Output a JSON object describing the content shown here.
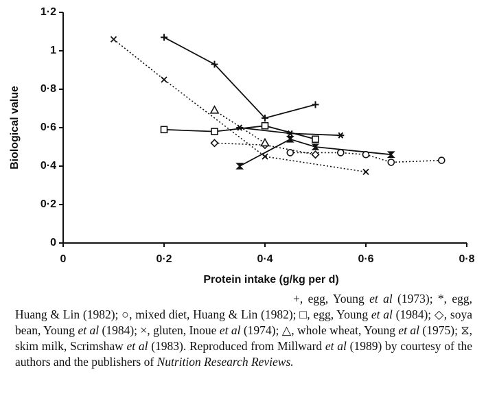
{
  "chart_data": {
    "type": "line",
    "xlabel": "Protein intake (g/kg per d)",
    "ylabel": "Biological value",
    "xlim": [
      0,
      0.8
    ],
    "ylim": [
      0,
      1.2
    ],
    "xticks": [
      0,
      {
        "value": 0.2,
        "label": "0·2"
      },
      {
        "value": 0.4,
        "label": "0·4"
      },
      {
        "value": 0.6,
        "label": "0·6"
      },
      {
        "value": 0.8,
        "label": "0·8"
      }
    ],
    "yticks": [
      0,
      {
        "value": 0.2,
        "label": "0·2"
      },
      {
        "value": 0.4,
        "label": "0·4"
      },
      {
        "value": 0.6,
        "label": "0·6"
      },
      {
        "value": 0.8,
        "label": "0·8"
      },
      1,
      {
        "value": 1.2,
        "label": "1·2"
      }
    ],
    "color": "#111",
    "series": [
      {
        "marker": "plus",
        "dashed": false,
        "x": [
          0.2,
          0.3,
          0.4,
          0.5
        ],
        "values": [
          1.07,
          0.93,
          0.65,
          0.72
        ]
      },
      {
        "marker": "star",
        "dashed": false,
        "x": [
          0.35,
          0.45,
          0.55
        ],
        "values": [
          0.6,
          0.57,
          0.56
        ]
      },
      {
        "marker": "circle",
        "dashed": true,
        "x": [
          0.45,
          0.55,
          0.6,
          0.65,
          0.75
        ],
        "values": [
          0.47,
          0.47,
          0.46,
          0.42,
          0.43
        ]
      },
      {
        "marker": "square",
        "dashed": false,
        "x": [
          0.2,
          0.3,
          0.4,
          0.5
        ],
        "values": [
          0.59,
          0.58,
          0.61,
          0.54
        ]
      },
      {
        "marker": "diamond",
        "dashed": true,
        "x": [
          0.3,
          0.4,
          0.5
        ],
        "values": [
          0.52,
          0.51,
          0.46
        ]
      },
      {
        "marker": "cross",
        "dashed": true,
        "x": [
          0.1,
          0.2,
          0.4,
          0.6
        ],
        "values": [
          1.06,
          0.85,
          0.45,
          0.37
        ]
      },
      {
        "marker": "triangle",
        "dashed": true,
        "x": [
          0.3,
          0.4
        ],
        "values": [
          0.69,
          0.52
        ]
      },
      {
        "marker": "hourglass",
        "dashed": false,
        "x": [
          0.35,
          0.45,
          0.5,
          0.65
        ],
        "values": [
          0.4,
          0.54,
          0.5,
          0.46
        ]
      }
    ],
    "caption": [
      {
        "text": "+, egg, Young "
      },
      {
        "text": "et al",
        "italic": true
      },
      {
        "text": " (1973); *, egg, Huang & Lin (1982); ○, mixed diet, Huang & Lin (1982); □, egg, Young "
      },
      {
        "text": "et al",
        "italic": true
      },
      {
        "text": " (1984); ◇, soya bean, Young "
      },
      {
        "text": "et al",
        "italic": true
      },
      {
        "text": " (1984); ×, gluten, Inoue "
      },
      {
        "text": "et al",
        "italic": true
      },
      {
        "text": " (1974); △, whole wheat, Young "
      },
      {
        "text": "et al",
        "italic": true
      },
      {
        "text": " (1975); ⧖, skim milk, Scrimshaw "
      },
      {
        "text": "et al",
        "italic": true
      },
      {
        "text": " (1983). Reproduced from Millward "
      },
      {
        "text": "et al",
        "italic": true
      },
      {
        "text": " (1989) by courtesy of the authors and the publishers of "
      },
      {
        "text": "Nutrition Research Reviews.",
        "italic": true
      }
    ]
  }
}
